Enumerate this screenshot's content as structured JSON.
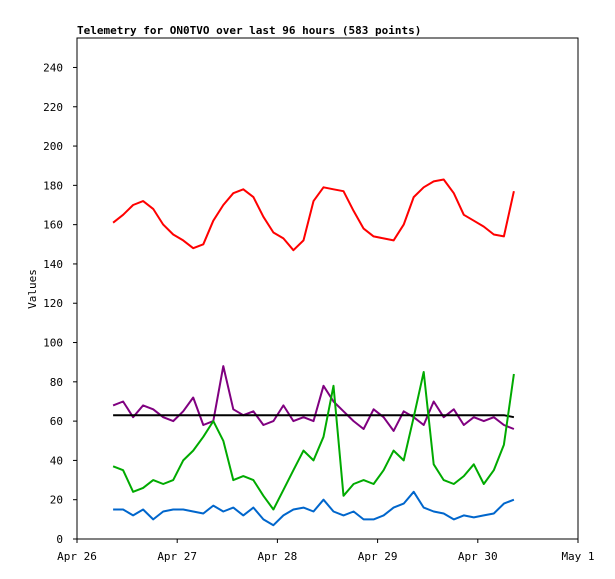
{
  "chart_data": {
    "type": "line",
    "title": "Telemetry for ON0TVO over last 96 hours (583 points)",
    "y_label": "Values",
    "x": [
      0.36,
      0.46,
      0.56,
      0.66,
      0.76,
      0.86,
      0.96,
      1.06,
      1.16,
      1.26,
      1.36,
      1.46,
      1.56,
      1.66,
      1.76,
      1.86,
      1.96,
      2.06,
      2.16,
      2.26,
      2.36,
      2.46,
      2.56,
      2.66,
      2.76,
      2.86,
      2.96,
      3.06,
      3.16,
      3.26,
      3.36,
      3.46,
      3.56,
      3.66,
      3.76,
      3.86,
      3.96,
      4.06,
      4.16,
      4.26,
      4.36
    ],
    "xlim": [
      0,
      5
    ],
    "xticks": [
      {
        "value": 0,
        "label": "Apr 26"
      },
      {
        "value": 1,
        "label": "Apr 27"
      },
      {
        "value": 2,
        "label": "Apr 28"
      },
      {
        "value": 3,
        "label": "Apr 29"
      },
      {
        "value": 4,
        "label": "Apr 30"
      },
      {
        "value": 5,
        "label": "May 1"
      }
    ],
    "ylim": [
      0,
      255
    ],
    "yticks": [
      0,
      20,
      40,
      60,
      80,
      100,
      120,
      140,
      160,
      180,
      200,
      220,
      240
    ],
    "series": [
      {
        "color": "#ff0000",
        "values": [
          161,
          165,
          170,
          172,
          168,
          160,
          155,
          152,
          148,
          150,
          162,
          170,
          176,
          178,
          174,
          164,
          156,
          153,
          147,
          152,
          172,
          179,
          178,
          177,
          167,
          158,
          154,
          153,
          152,
          160,
          174,
          179,
          182,
          183,
          176,
          165,
          162,
          159,
          155,
          154,
          177
        ]
      },
      {
        "color": "#800080",
        "values": [
          68,
          70,
          62,
          68,
          66,
          62,
          60,
          65,
          72,
          58,
          60,
          88,
          66,
          63,
          65,
          58,
          60,
          68,
          60,
          62,
          60,
          78,
          70,
          65,
          60,
          56,
          66,
          62,
          55,
          65,
          62,
          58,
          70,
          62,
          66,
          58,
          62,
          60,
          62,
          58,
          56
        ]
      },
      {
        "color": "#000000",
        "values": [
          63,
          63,
          63,
          63,
          63,
          63,
          63,
          63,
          63,
          63,
          63,
          63,
          63,
          63,
          63,
          63,
          63,
          63,
          63,
          63,
          63,
          63,
          63,
          63,
          63,
          63,
          63,
          63,
          63,
          63,
          63,
          63,
          63,
          63,
          63,
          63,
          63,
          63,
          63,
          63,
          62
        ]
      },
      {
        "color": "#00aa00",
        "values": [
          37,
          35,
          24,
          26,
          30,
          28,
          30,
          40,
          45,
          52,
          60,
          50,
          30,
          32,
          30,
          22,
          15,
          25,
          35,
          45,
          40,
          52,
          78,
          22,
          28,
          30,
          28,
          35,
          45,
          40,
          62,
          85,
          38,
          30,
          28,
          32,
          38,
          28,
          35,
          48,
          84
        ]
      },
      {
        "color": "#0066cc",
        "values": [
          15,
          15,
          12,
          15,
          10,
          14,
          15,
          15,
          14,
          13,
          17,
          14,
          16,
          12,
          16,
          10,
          7,
          12,
          15,
          16,
          14,
          20,
          14,
          12,
          14,
          10,
          10,
          12,
          16,
          18,
          24,
          16,
          14,
          13,
          10,
          12,
          11,
          12,
          13,
          18,
          20
        ]
      }
    ]
  }
}
